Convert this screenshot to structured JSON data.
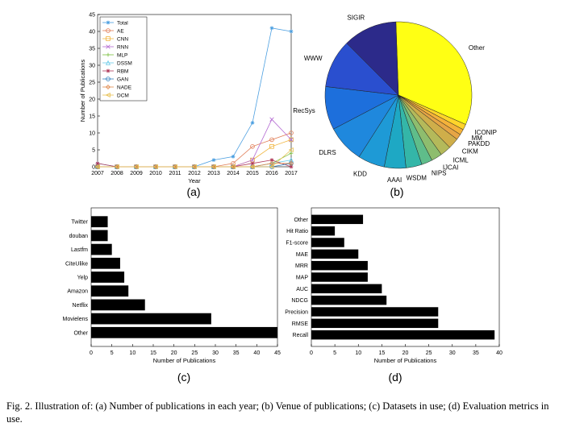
{
  "figure": {
    "caption": "Fig. 2.  Illustration of: (a) Number of publications in each year; (b) Venue of publications; (c) Datasets in use; (d) Evaluation metrics in use."
  },
  "chart_data": [
    {
      "panel": "(a)",
      "type": "line",
      "xlabel": "Year",
      "ylabel": "Number of Publications",
      "x": [
        2007,
        2008,
        2009,
        2010,
        2011,
        2012,
        2013,
        2014,
        2015,
        2016,
        2017
      ],
      "xlim": [
        2007,
        2017
      ],
      "ylim": [
        0,
        45
      ],
      "yticks": [
        0,
        5,
        10,
        15,
        20,
        25,
        30,
        35,
        40,
        45
      ],
      "legend_position": "top-left",
      "grid": false,
      "series": [
        {
          "name": "Total",
          "color": "#4a9ee0",
          "marker": "star",
          "values": [
            1,
            0,
            0,
            0,
            0,
            0,
            2,
            3,
            13,
            41,
            40
          ]
        },
        {
          "name": "AE",
          "color": "#e07b54",
          "marker": "circle",
          "values": [
            0,
            0,
            0,
            0,
            0,
            0,
            0,
            1,
            6,
            8,
            10
          ]
        },
        {
          "name": "CNN",
          "color": "#f0b43c",
          "marker": "square",
          "values": [
            0,
            0,
            0,
            0,
            0,
            0,
            0,
            0,
            2,
            6,
            8
          ]
        },
        {
          "name": "RNN",
          "color": "#b46ad2",
          "marker": "x",
          "values": [
            0,
            0,
            0,
            0,
            0,
            0,
            0,
            0,
            2,
            14,
            8
          ]
        },
        {
          "name": "MLP",
          "color": "#7cc040",
          "marker": "plus",
          "values": [
            0,
            0,
            0,
            0,
            0,
            0,
            0,
            0,
            0,
            1,
            4
          ]
        },
        {
          "name": "DSSM",
          "color": "#6bcbe8",
          "marker": "triangle",
          "values": [
            0,
            0,
            0,
            0,
            0,
            0,
            0,
            0,
            0,
            1,
            2
          ]
        },
        {
          "name": "RBM",
          "color": "#b03a5a",
          "marker": "star",
          "values": [
            1,
            0,
            0,
            0,
            0,
            0,
            0,
            0,
            1,
            2,
            0
          ]
        },
        {
          "name": "GAN",
          "color": "#2f7fbf",
          "marker": "circle",
          "values": [
            0,
            0,
            0,
            0,
            0,
            0,
            0,
            0,
            0,
            0,
            1
          ]
        },
        {
          "name": "NADE",
          "color": "#e0894c",
          "marker": "diamond",
          "values": [
            0,
            0,
            0,
            0,
            0,
            0,
            0,
            0,
            0,
            1,
            1
          ]
        },
        {
          "name": "DCM",
          "color": "#e8c050",
          "marker": "triangle-left",
          "values": [
            0,
            0,
            0,
            0,
            0,
            0,
            0,
            0,
            0,
            0,
            5
          ]
        }
      ]
    },
    {
      "panel": "(b)",
      "type": "pie",
      "slices": [
        {
          "label": "Other",
          "value": 31.0,
          "color": "#ffff14"
        },
        {
          "label": "ICONIP",
          "value": 1.2,
          "color": "#ffd42a"
        },
        {
          "label": "MM",
          "value": 1.2,
          "color": "#f4b23a"
        },
        {
          "label": "PAKDD",
          "value": 1.2,
          "color": "#e6a545"
        },
        {
          "label": "CIKM",
          "value": 2.3,
          "color": "#cfae4a"
        },
        {
          "label": "ICML",
          "value": 2.3,
          "color": "#b4b95a"
        },
        {
          "label": "IJCAI",
          "value": 2.3,
          "color": "#8ebd6e"
        },
        {
          "label": "NIPS",
          "value": 2.3,
          "color": "#5fbd8a"
        },
        {
          "label": "WSDM",
          "value": 3.4,
          "color": "#34b6a8"
        },
        {
          "label": "AAAI",
          "value": 4.6,
          "color": "#1ea8c4"
        },
        {
          "label": "KDD",
          "value": 5.7,
          "color": "#1e9ad6"
        },
        {
          "label": "DLRS",
          "value": 8.0,
          "color": "#1f88dd"
        },
        {
          "label": "RecSys",
          "value": 9.2,
          "color": "#1d6fdc"
        },
        {
          "label": "WWW",
          "value": 10.3,
          "color": "#2a4fcf"
        },
        {
          "label": "SIGIR",
          "value": 11.5,
          "color": "#2c2a8a"
        }
      ]
    },
    {
      "panel": "(c)",
      "type": "bar",
      "orientation": "horizontal",
      "xlabel": "Number of Publications",
      "xlim": [
        0,
        45
      ],
      "xticks": [
        0,
        5,
        10,
        15,
        20,
        25,
        30,
        35,
        40,
        45
      ],
      "color": "#000000",
      "categories": [
        "Twitter",
        "douban",
        "Lastfm",
        "CiteUlike",
        "Yelp",
        "Amazon",
        "Netflix",
        "Movielens",
        "Other"
      ],
      "values": [
        4,
        4,
        5,
        7,
        8,
        9,
        13,
        29,
        45
      ]
    },
    {
      "panel": "(d)",
      "type": "bar",
      "orientation": "horizontal",
      "xlabel": "Number of Publications",
      "xlim": [
        0,
        40
      ],
      "xticks": [
        0,
        5,
        10,
        15,
        20,
        25,
        30,
        35,
        40
      ],
      "color": "#000000",
      "categories": [
        "Other",
        "Hit Ratio",
        "F1-score",
        "MAE",
        "MRR",
        "MAP",
        "AUC",
        "NDCG",
        "Precision",
        "RMSE",
        "Recall"
      ],
      "values": [
        11,
        5,
        7,
        10,
        12,
        12,
        15,
        16,
        27,
        27,
        39
      ]
    }
  ]
}
